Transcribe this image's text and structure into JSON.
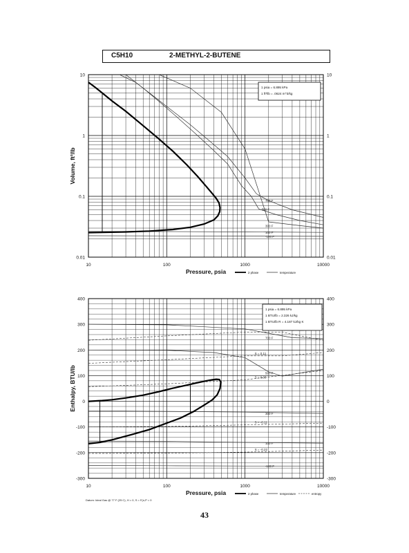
{
  "header": {
    "formula": "C5H10",
    "name": "2-METHYL-2-BUTENE"
  },
  "page_number": "43",
  "chart_data": [
    {
      "type": "line",
      "xlabel": "Pressure,  psia",
      "ylabel": "Volume,  ft^3/lb",
      "xscale": "log",
      "yscale": "log",
      "xlim": [
        10,
        10000
      ],
      "ylim": [
        0.01,
        10
      ],
      "grid": true,
      "x_ticks": [
        "10",
        "100",
        "1000",
        "10000"
      ],
      "y_ticks": [
        "0.01",
        "0.1",
        "1",
        "10"
      ],
      "y_ticks_right": [
        "0.01",
        "0.1",
        "1",
        "10"
      ],
      "conversion_box": [
        "1 psia  =  6.895 kPa",
        "1 ft^3/lb  =  .0624 m^3/kg"
      ],
      "legend": [
        "2 phase",
        "temperature"
      ],
      "saturation_dome": {
        "x": [
          10,
          12,
          15,
          20,
          30,
          50,
          80,
          120,
          180,
          250,
          320,
          380,
          430,
          465,
          480,
          475,
          450,
          400,
          300,
          200,
          120,
          60,
          30,
          15,
          10
        ],
        "y": [
          7.5,
          6.3,
          5.0,
          3.7,
          2.5,
          1.45,
          0.87,
          0.55,
          0.33,
          0.21,
          0.145,
          0.112,
          0.092,
          0.078,
          0.065,
          0.056,
          0.048,
          0.041,
          0.035,
          0.031,
          0.0285,
          0.0268,
          0.026,
          0.0255,
          0.0253
        ]
      },
      "quality_line": {
        "x": [
          15,
          15
        ],
        "y": [
          5.0,
          0.0255
        ]
      },
      "isotherms": [
        {
          "label": "700 F",
          "x": [
            25,
            40,
            70,
            120,
            200,
            350,
            600,
            1000,
            1400,
            2000,
            4000,
            10000
          ],
          "y": [
            10,
            7.5,
            4.3,
            2.5,
            1.5,
            0.82,
            0.45,
            0.2,
            0.11,
            0.085,
            0.06,
            0.045
          ]
        },
        {
          "label": "500 F",
          "x": [
            30,
            50,
            80,
            130,
            220,
            380,
            600,
            900,
            1200,
            1500,
            2500,
            5000,
            10000
          ],
          "y": [
            10,
            6,
            3.6,
            2.1,
            1.15,
            0.6,
            0.34,
            0.15,
            0.1,
            0.062,
            0.05,
            0.04,
            0.034
          ]
        },
        {
          "label": "300 F",
          "x": [
            80,
            200,
            500,
            1000,
            2000,
            5000,
            10000
          ],
          "y": [
            10,
            6,
            2.4,
            0.6,
            0.038,
            0.033,
            0.03
          ]
        },
        {
          "label": "100 F",
          "x": [
            10,
            100,
            1000,
            10000
          ],
          "y": [
            0.0265,
            0.0263,
            0.026,
            0.0255
          ]
        },
        {
          "label": "-100 F",
          "x": [
            10,
            100,
            1000,
            10000
          ],
          "y": [
            0.0225,
            0.0223,
            0.0222,
            0.022
          ]
        }
      ]
    },
    {
      "type": "line",
      "xlabel": "Pressure,  psia",
      "ylabel": "Enthalpy,  BTU/lb",
      "xscale": "log",
      "yscale": "linear",
      "xlim": [
        10,
        10000
      ],
      "ylim": [
        -300,
        400
      ],
      "grid": true,
      "x_ticks": [
        "10",
        "100",
        "1000",
        "10000"
      ],
      "y_ticks": [
        "-300",
        "-200",
        "-100",
        "0",
        "100",
        "200",
        "300",
        "400"
      ],
      "y_ticks_right": [
        "-300",
        "-200",
        "-100",
        "0",
        "100",
        "200",
        "300",
        "400"
      ],
      "conversion_box": [
        "1 psia  =  6.895 kPa",
        "1 BTU/lb  =  2.326 kJ/kg",
        "1 BTU/lb R  =  4.187 kJ/kg K"
      ],
      "legend": [
        "2 phase",
        "temperature",
        "entropy"
      ],
      "footnote": "Datum: Ideal Gas @ 77 F (25 C),  H = 0,  S = F(n,P = 0",
      "saturation_dome": {
        "x": [
          10,
          15,
          20,
          30,
          50,
          80,
          120,
          180,
          250,
          320,
          380,
          430,
          470,
          490,
          480,
          440,
          380,
          300,
          220,
          150,
          100,
          60,
          35,
          20,
          14,
          10
        ],
        "y": [
          0,
          3,
          6,
          13,
          24,
          38,
          51,
          63,
          73,
          80,
          84,
          86,
          85,
          75,
          50,
          25,
          5,
          -15,
          -40,
          -65,
          -85,
          -110,
          -130,
          -150,
          -160,
          -165
        ]
      },
      "quality_lines": [
        {
          "x": [
            14,
            14
          ],
          "y": [
            4,
            -160
          ]
        },
        {
          "x": [
            200,
            200
          ],
          "y": [
            64,
            -45
          ]
        }
      ],
      "isotherms": [
        {
          "label": "700 F",
          "x": [
            10,
            100,
            1000,
            2000,
            4000,
            10000
          ],
          "y": [
            300,
            298,
            282,
            265,
            248,
            244
          ]
        },
        {
          "label": "500 F",
          "x": [
            10,
            100,
            400,
            1000,
            2000,
            3000,
            5000,
            10000
          ],
          "y": [
            200,
            199,
            190,
            170,
            115,
            98,
            110,
            125
          ]
        },
        {
          "label": "300 F",
          "x": [
            10,
            100,
            1000,
            10000
          ],
          "y": [
            -37,
            -39,
            -42,
            -47
          ]
        },
        {
          "label": "100 F",
          "x": [
            10,
            100,
            1000,
            10000
          ],
          "y": [
            -155,
            -156,
            -160,
            -163
          ]
        },
        {
          "label": "-100 F",
          "x": [
            10,
            100,
            1000,
            10000
          ],
          "y": [
            -250,
            -251,
            -252,
            -252
          ]
        }
      ],
      "entropy_lines": [
        {
          "label": "S = 0.22",
          "x": [
            10,
            100,
            1000,
            3000,
            5000,
            10000
          ],
          "y": [
            238,
            255,
            270,
            270,
            255,
            238
          ]
        },
        {
          "label": "S = 0.11",
          "x": [
            10,
            100,
            1000,
            3000,
            10000
          ],
          "y": [
            148,
            162,
            177,
            177,
            190
          ]
        },
        {
          "label": "S = 0.00",
          "x": [
            10,
            100,
            1000,
            10000
          ],
          "y": [
            57,
            68,
            84,
            120
          ]
        },
        {
          "label": "S = -0.11",
          "x": [
            10,
            100,
            1000,
            10000
          ],
          "y": [
            -100,
            -98,
            -92,
            -85
          ]
        },
        {
          "label": "S = -0.22",
          "x": [
            10,
            100,
            1000,
            10000
          ],
          "y": [
            -203,
            -202,
            -198,
            -190
          ]
        }
      ]
    }
  ]
}
